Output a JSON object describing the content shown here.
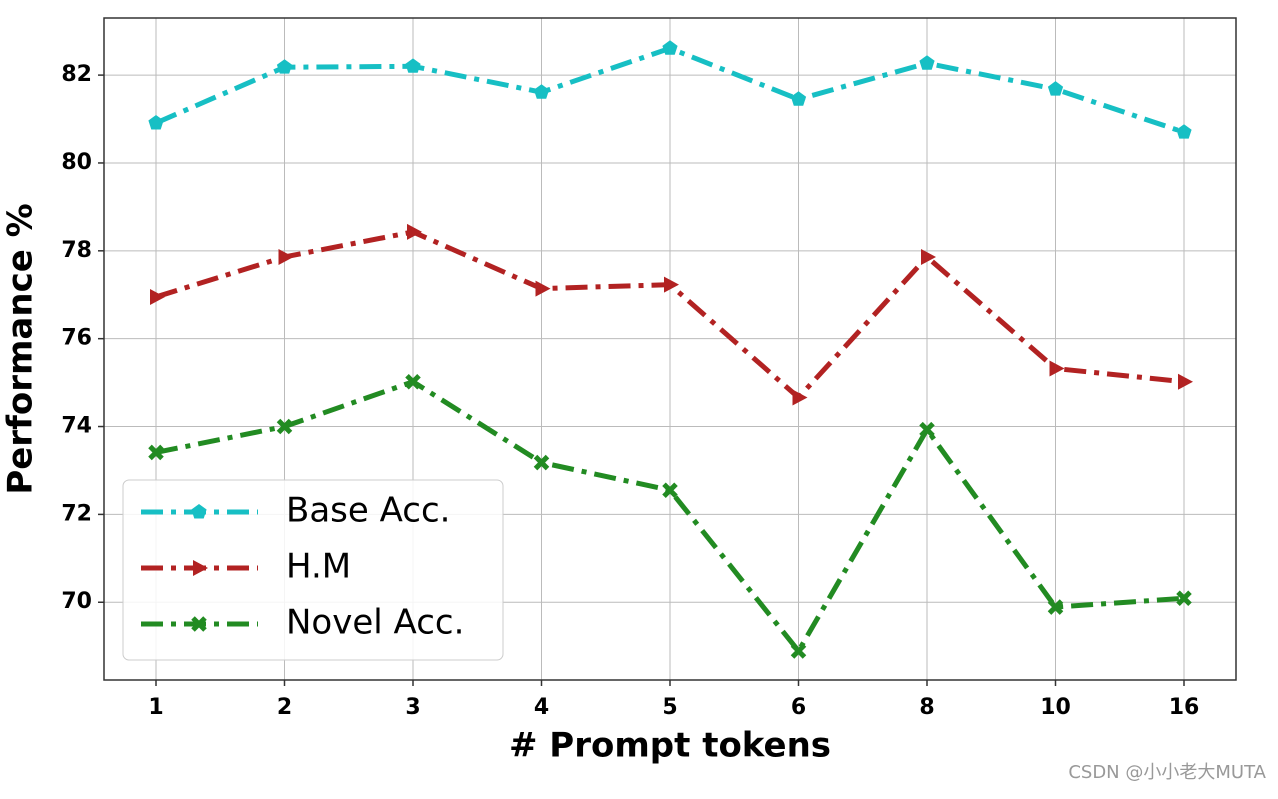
{
  "chart_data": {
    "type": "line",
    "x_label": "# Prompt tokens",
    "y_label": "Performance %",
    "categories": [
      "1",
      "2",
      "3",
      "4",
      "5",
      "6",
      "8",
      "10",
      "16"
    ],
    "series": [
      {
        "name": "Base Acc.",
        "color": "#17bfc4",
        "marker": "pentagon",
        "values": [
          80.91,
          82.18,
          82.2,
          81.61,
          82.61,
          81.45,
          82.27,
          81.68,
          80.7
        ]
      },
      {
        "name": "H.M",
        "color": "#b22222",
        "marker": "triangle-right",
        "values": [
          76.95,
          77.86,
          78.43,
          77.14,
          77.23,
          74.66,
          77.86,
          75.32,
          75.02
        ]
      },
      {
        "name": "Novel Acc.",
        "color": "#228b22",
        "marker": "x",
        "values": [
          73.41,
          74.0,
          75.02,
          73.18,
          72.55,
          68.89,
          73.93,
          69.89,
          70.09
        ]
      }
    ],
    "ylim": [
      68.23,
      83.3
    ],
    "yticks": [
      70,
      72,
      74,
      76,
      78,
      80,
      82
    ],
    "grid": true,
    "legend": "lower left",
    "watermark": "CSDN @小小老大MUTA"
  }
}
